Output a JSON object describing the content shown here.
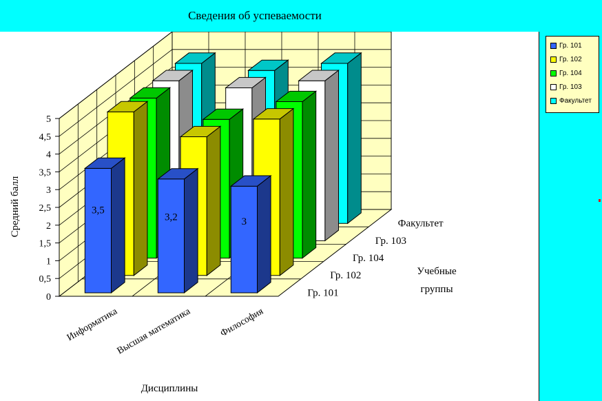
{
  "chart_data": {
    "type": "bar",
    "title": "Сведения об успеваемости",
    "xlabel": "Дисциплины",
    "ylabel": "Средний балл",
    "zlabel_line1": "Учебные",
    "zlabel_line2": "группы",
    "categories": [
      "Информатика",
      "Высшая математика",
      "Философия"
    ],
    "yticks": [
      "0",
      "0,5",
      "1",
      "1,5",
      "2",
      "2,5",
      "3",
      "3,5",
      "4",
      "4,5",
      "5"
    ],
    "ylim": [
      0,
      5
    ],
    "depth_labels": [
      "Гр. 101",
      "Гр. 102",
      "Гр. 104",
      "Гр. 103",
      "Факультет"
    ],
    "series": [
      {
        "name": "Гр. 101",
        "color": "#3366FF",
        "values": [
          3.5,
          3.2,
          3
        ]
      },
      {
        "name": "Гр. 102",
        "color": "#FFFF00",
        "values": [
          4.6,
          3.9,
          4.4
        ]
      },
      {
        "name": "Гр. 104",
        "color": "#00FF00",
        "values": [
          4.5,
          3.9,
          4.4
        ]
      },
      {
        "name": "Гр. 103",
        "color": "#FFFFFF",
        "values": [
          4.5,
          4.3,
          4.5
        ]
      },
      {
        "name": "Факультет",
        "color": "#00FFFF",
        "values": [
          4.5,
          4.3,
          4.5
        ]
      }
    ],
    "data_labels": [
      "3,5",
      "3,2",
      "3"
    ],
    "grid": true,
    "legend_position": "right"
  }
}
